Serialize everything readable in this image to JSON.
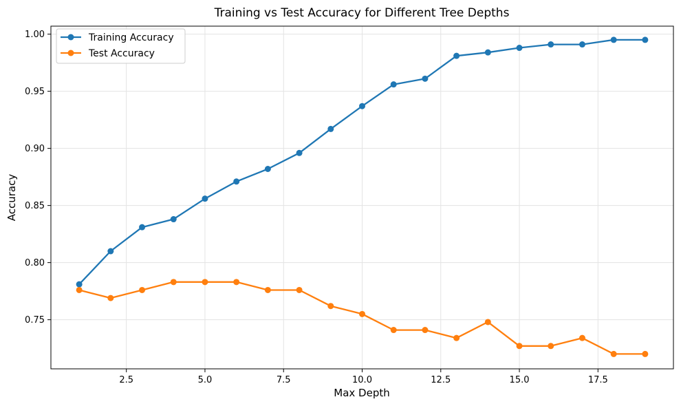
{
  "chart_data": {
    "type": "line",
    "title": "Training vs Test Accuracy for Different Tree Depths",
    "xlabel": "Max Depth",
    "ylabel": "Accuracy",
    "xlim": [
      0.1,
      19.9
    ],
    "ylim": [
      0.707,
      1.007
    ],
    "xticks": [
      2.5,
      5.0,
      7.5,
      10.0,
      12.5,
      15.0,
      17.5
    ],
    "xtick_labels": [
      "2.5",
      "5.0",
      "7.5",
      "10.0",
      "12.5",
      "15.0",
      "17.5"
    ],
    "yticks": [
      0.75,
      0.8,
      0.85,
      0.9,
      0.95,
      1.0
    ],
    "ytick_labels": [
      "0.75",
      "0.80",
      "0.85",
      "0.90",
      "0.95",
      "1.00"
    ],
    "grid": true,
    "legend_position": "top-left",
    "x": [
      1,
      2,
      3,
      4,
      5,
      6,
      7,
      8,
      9,
      10,
      11,
      12,
      13,
      14,
      15,
      16,
      17,
      18,
      19
    ],
    "series": [
      {
        "name": "Training Accuracy",
        "color": "#1f77b4",
        "values": [
          0.781,
          0.81,
          0.831,
          0.838,
          0.856,
          0.871,
          0.882,
          0.896,
          0.917,
          0.937,
          0.956,
          0.961,
          0.981,
          0.984,
          0.988,
          0.991,
          0.991,
          0.995,
          0.995
        ]
      },
      {
        "name": "Test Accuracy",
        "color": "#ff7f0e",
        "values": [
          0.776,
          0.769,
          0.776,
          0.783,
          0.783,
          0.783,
          0.776,
          0.776,
          0.762,
          0.755,
          0.741,
          0.741,
          0.734,
          0.748,
          0.727,
          0.727,
          0.734,
          0.72,
          0.72
        ]
      }
    ]
  }
}
